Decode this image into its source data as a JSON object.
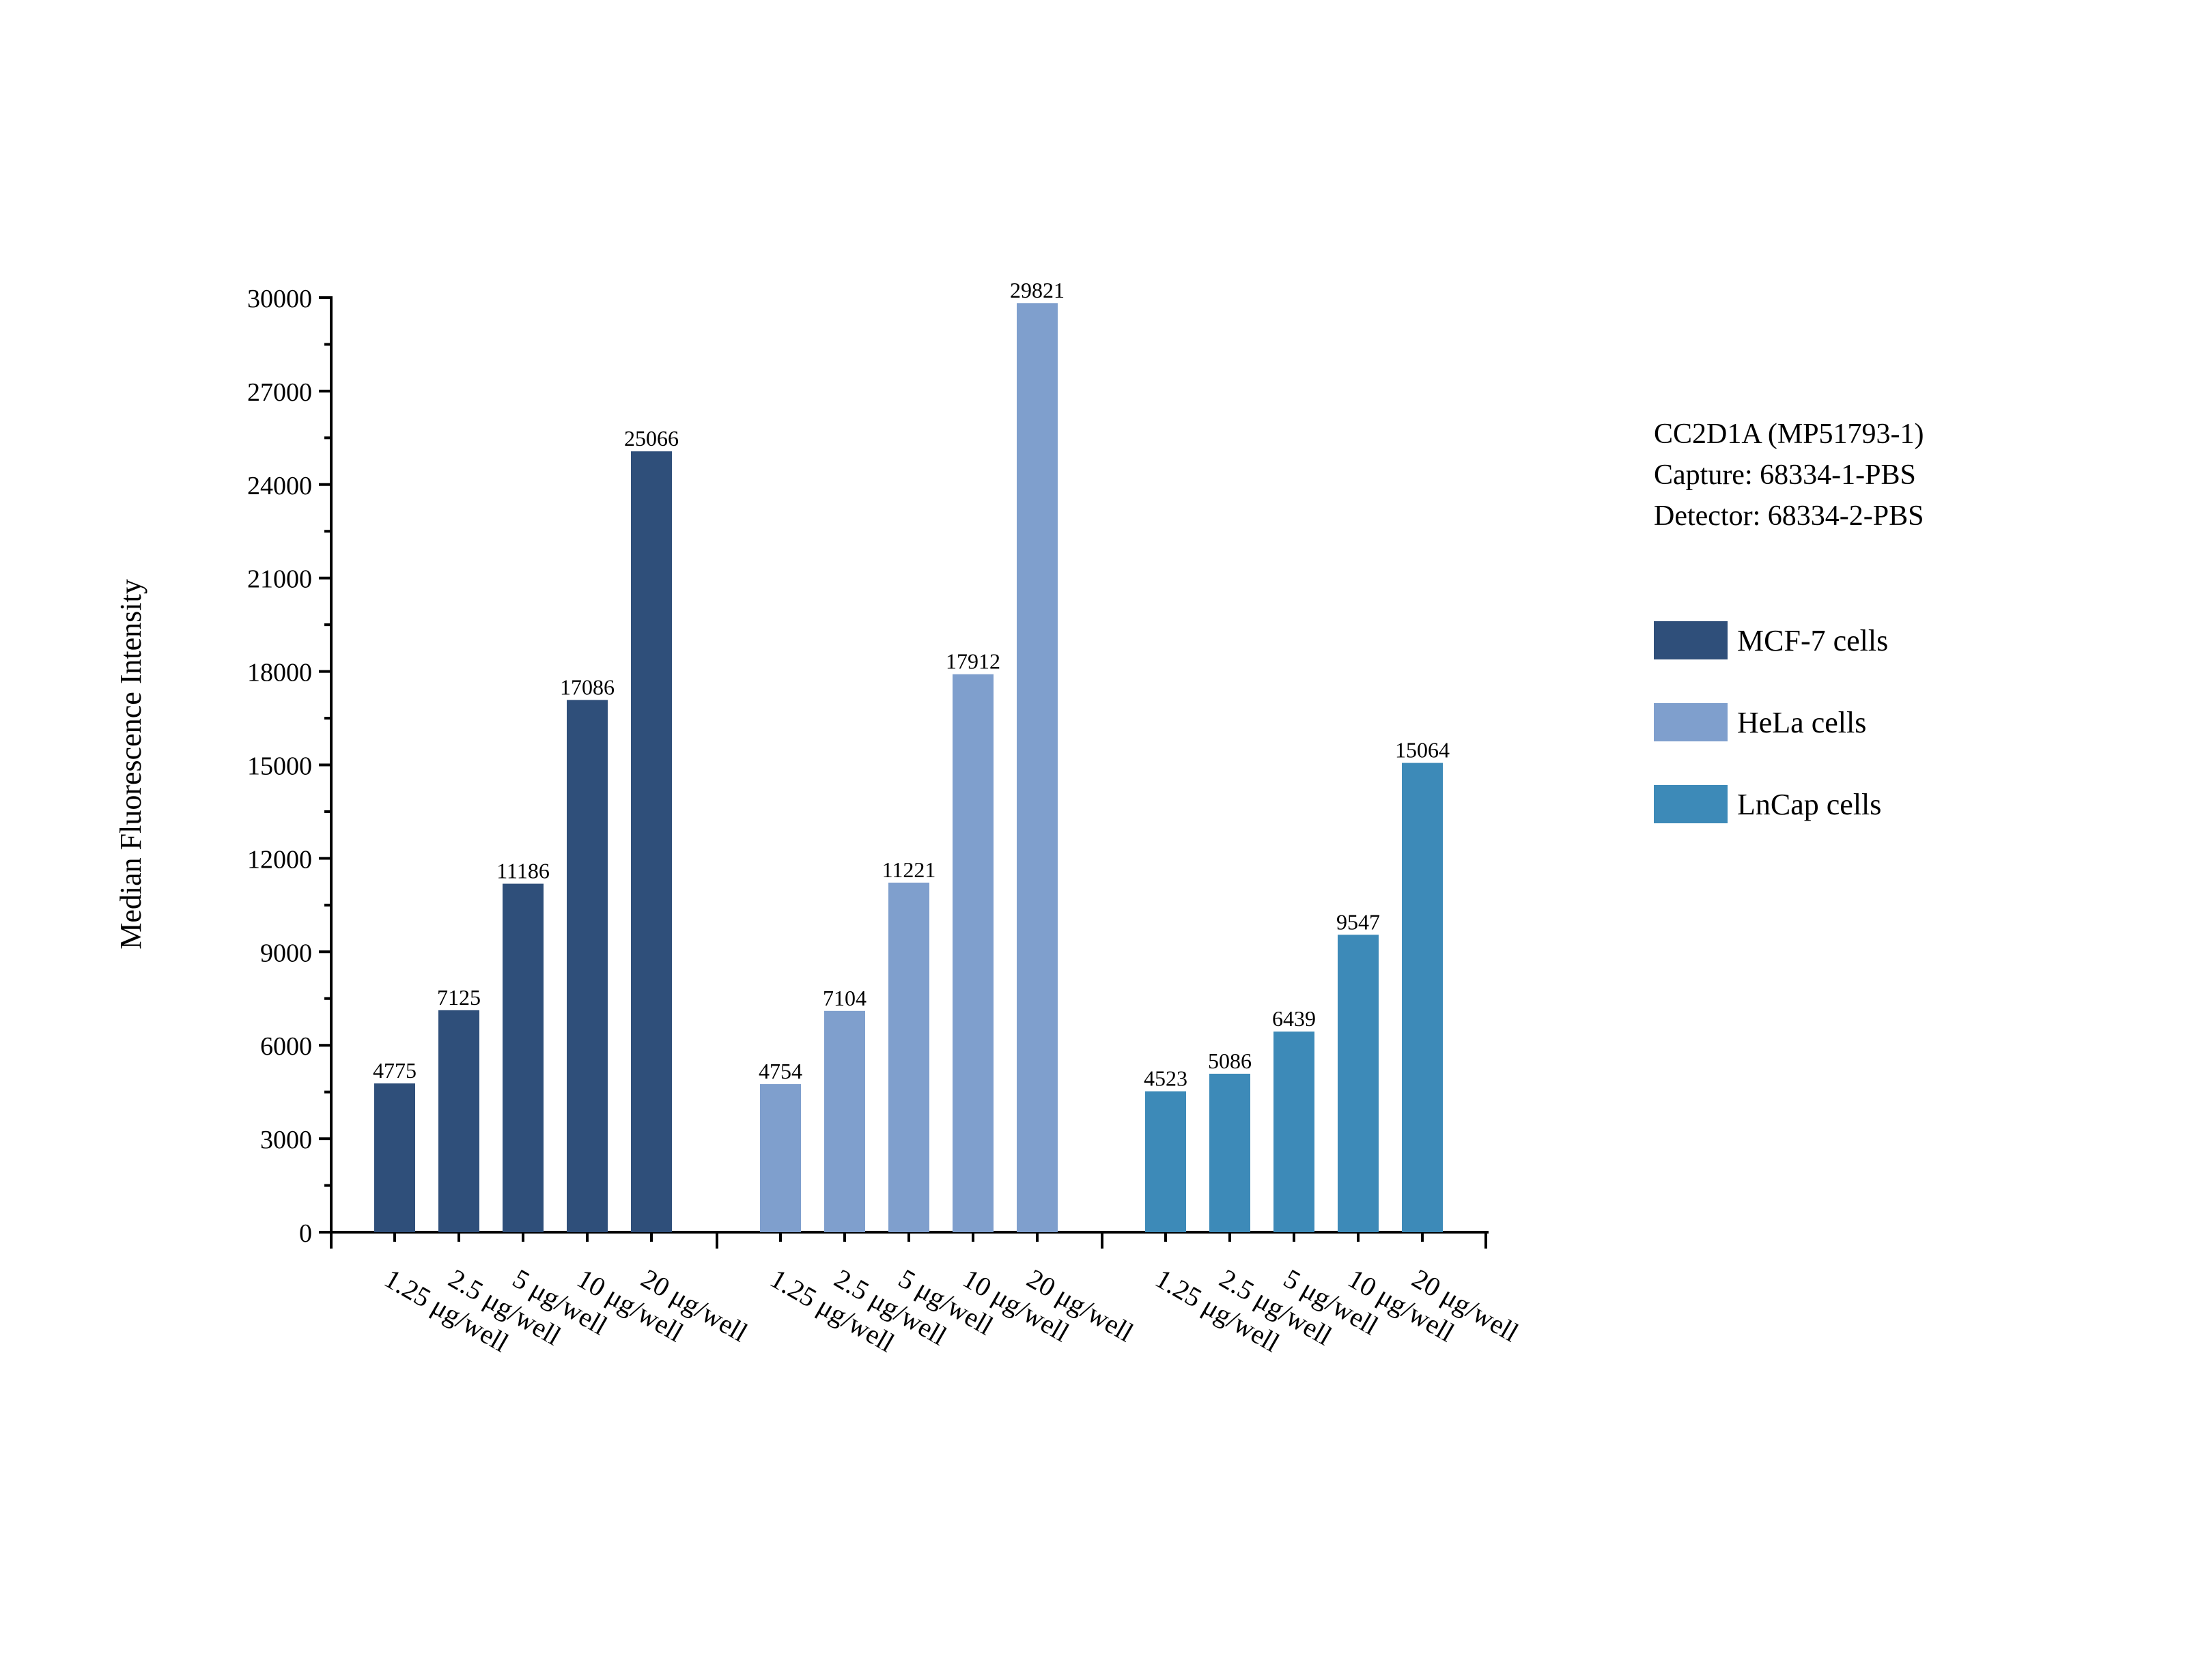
{
  "chart_data": {
    "type": "bar",
    "ylabel": "Median Fluorescence Intensity",
    "xlabel": "",
    "ylim": [
      0,
      30000
    ],
    "yticks": [
      0,
      3000,
      6000,
      9000,
      12000,
      15000,
      18000,
      21000,
      24000,
      27000,
      30000
    ],
    "categories": [
      "1.25 μg/well",
      "2.5 μg/well",
      "5 μg/well",
      "10 μg/well",
      "20 μg/well"
    ],
    "grid": false,
    "legend_position": "right",
    "series": [
      {
        "name": "MCF-7 cells",
        "color": "#2f4f7a",
        "values": [
          4775,
          7125,
          11186,
          17086,
          25066
        ]
      },
      {
        "name": "HeLa cells",
        "color": "#7f9fcd",
        "values": [
          4754,
          7104,
          11221,
          17912,
          29821
        ]
      },
      {
        "name": "LnCap cells",
        "color": "#3d8ab8",
        "values": [
          4523,
          5086,
          6439,
          9547,
          15064
        ]
      }
    ]
  },
  "annotation": {
    "line1": "CC2D1A (MP51793-1)",
    "line2": "Capture: 68334-1-PBS",
    "line3": "Detector: 68334-2-PBS"
  }
}
